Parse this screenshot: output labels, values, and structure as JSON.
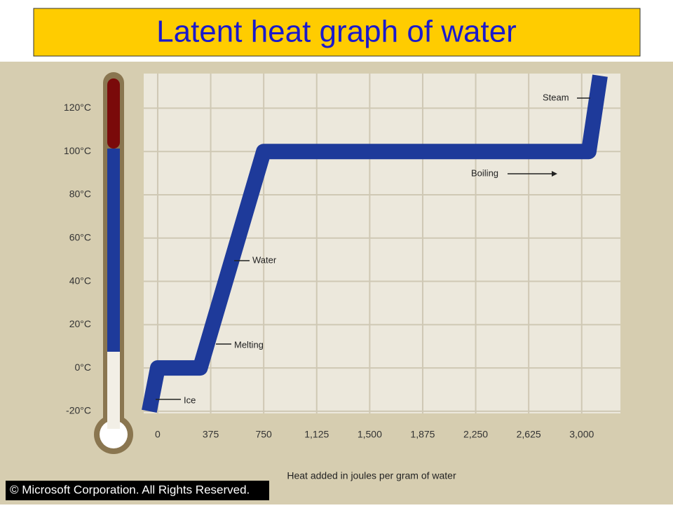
{
  "chart_data": {
    "type": "line",
    "title": "Latent heat graph of water",
    "x_label": "Heat added in joules per gram of water",
    "footer": "© Microsoft Corporation. All Rights Reserved.",
    "x": [
      -60,
      0,
      300,
      750,
      3050,
      3130
    ],
    "series": [
      {
        "name": "Water",
        "color": "#1e3a9a",
        "values": [
          -20,
          0,
          0,
          100,
          100,
          135
        ]
      }
    ],
    "xlim": [
      -99,
      3274
    ],
    "ylim": [
      -21,
      136
    ],
    "xticks": [
      0,
      375,
      750,
      {
        "value": 1125,
        "label": "1,125"
      },
      {
        "value": 1500,
        "label": "1,500"
      },
      {
        "value": 1875,
        "label": "1,875"
      },
      {
        "value": 2250,
        "label": "2,250"
      },
      {
        "value": 2625,
        "label": "2,625"
      },
      {
        "value": 3000,
        "label": "3,000"
      }
    ],
    "yticks": [
      {
        "value": -20,
        "label": "-20°C"
      },
      {
        "value": 0,
        "label": "0°C"
      },
      {
        "value": 20,
        "label": "20°C"
      },
      {
        "value": 40,
        "label": "40°C"
      },
      {
        "value": 60,
        "label": "60°C"
      },
      {
        "value": 80,
        "label": "80°C"
      },
      {
        "value": 100,
        "label": "100°C"
      },
      {
        "value": 120,
        "label": "120°C"
      }
    ],
    "grid": true,
    "annotations": [
      "Ice",
      "Melting",
      "Water",
      "Boiling",
      "Steam"
    ]
  }
}
